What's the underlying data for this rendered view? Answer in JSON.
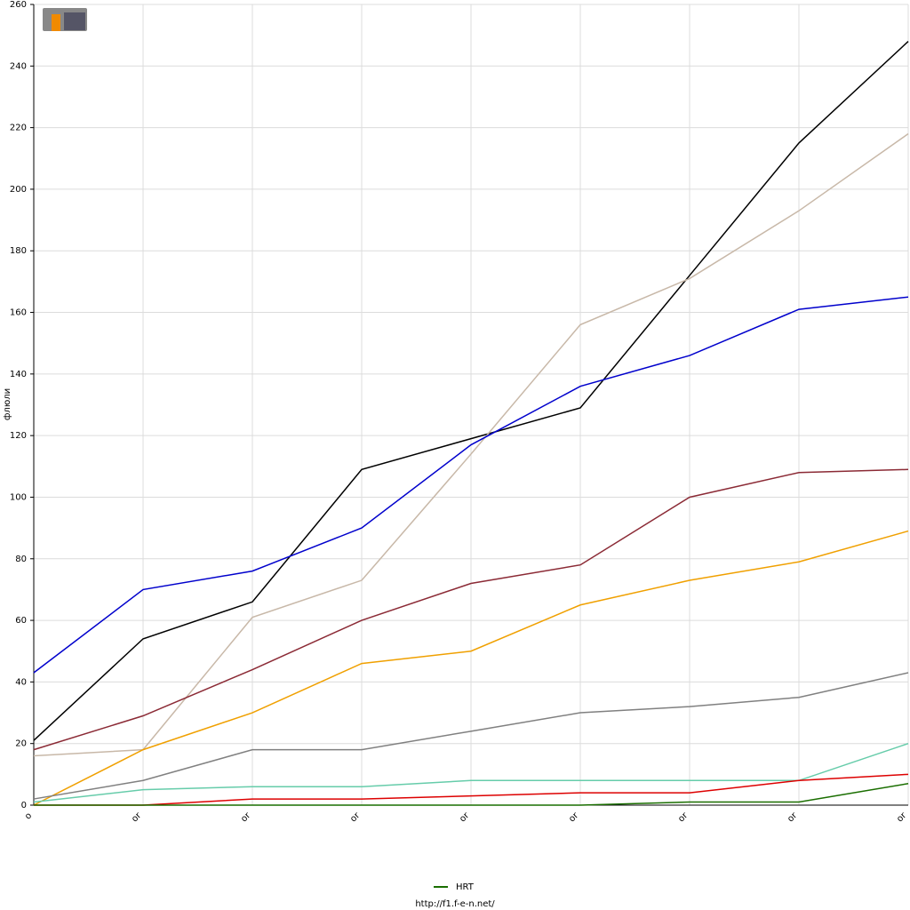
{
  "chart_data": {
    "type": "line",
    "y_label": "флюли",
    "footer": "http://f1.f-e-n.net/",
    "categories": [
      "o",
      "or",
      "or",
      "or",
      "or",
      "or",
      "or",
      "or",
      "or"
    ],
    "ylim": [
      0,
      260
    ],
    "yticks": [
      0,
      20,
      40,
      60,
      80,
      100,
      120,
      140,
      160,
      180,
      200,
      220,
      240,
      260
    ],
    "grid": true,
    "legend": "bottom",
    "series": [
      {
        "color": "#000000",
        "values": [
          21,
          54,
          66,
          109,
          119,
          129,
          172,
          215,
          248
        ]
      },
      {
        "color": "#c8b8a8",
        "values": [
          16,
          18,
          61,
          73,
          114,
          156,
          171,
          193,
          218
        ]
      },
      {
        "color": "#0000cc",
        "values": [
          43,
          70,
          76,
          90,
          117,
          136,
          146,
          161,
          165
        ]
      },
      {
        "color": "#8b2a35",
        "values": [
          18,
          29,
          44,
          60,
          72,
          78,
          100,
          108,
          109
        ]
      },
      {
        "color": "#f0a000",
        "values": [
          0,
          18,
          30,
          46,
          50,
          65,
          73,
          79,
          89
        ]
      },
      {
        "color": "#808080",
        "values": [
          2,
          8,
          18,
          18,
          24,
          30,
          32,
          35,
          43
        ]
      },
      {
        "color": "#66ccaa",
        "values": [
          1,
          5,
          6,
          6,
          8,
          8,
          8,
          8,
          20
        ]
      },
      {
        "color": "#dd0000",
        "values": [
          0,
          0,
          2,
          2,
          3,
          4,
          4,
          8,
          10
        ]
      },
      {
        "name": "HRT",
        "color": "#1a6e00",
        "values": [
          0,
          0,
          0,
          0,
          0,
          0,
          1,
          1,
          7
        ]
      }
    ]
  }
}
